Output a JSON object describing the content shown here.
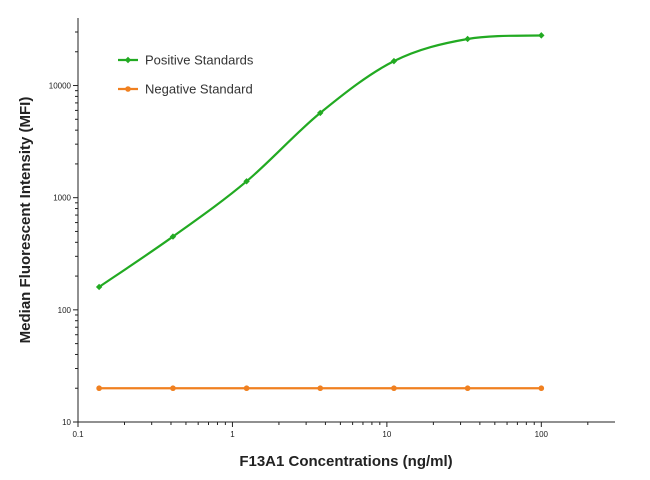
{
  "chart_data": {
    "type": "line",
    "title": "",
    "xlabel": "F13A1 Concentrations (ng/ml)",
    "ylabel": "Median  Fluorescent Intensity  (MFI)",
    "xscale": "log",
    "yscale": "log",
    "xlim": [
      0.1,
      300
    ],
    "ylim": [
      10,
      40000
    ],
    "x_ticks": [
      {
        "value": 0.1,
        "label": "0.1"
      },
      {
        "value": 1,
        "label": "1"
      },
      {
        "value": 10,
        "label": "10"
      },
      {
        "value": 100,
        "label": "100"
      }
    ],
    "y_ticks": [
      {
        "value": 10,
        "label": "10"
      },
      {
        "value": 100,
        "label": "100"
      },
      {
        "value": 1000,
        "label": "1000"
      },
      {
        "value": 10000,
        "label": "10000"
      }
    ],
    "grid": false,
    "legend_position": "top-left",
    "series": [
      {
        "name": "Positive Standards",
        "color": "#22aa22",
        "marker": "diamond",
        "smooth": true,
        "x": [
          0.137,
          0.412,
          1.235,
          3.704,
          11.11,
          33.33,
          100
        ],
        "y": [
          160,
          450,
          1400,
          5700,
          16500,
          26000,
          28000
        ]
      },
      {
        "name": "Negative Standard",
        "color": "#f08020",
        "marker": "circle",
        "smooth": false,
        "x": [
          0.137,
          0.412,
          1.235,
          3.704,
          11.11,
          33.33,
          100
        ],
        "y": [
          20,
          20,
          20,
          20,
          20,
          20,
          20
        ]
      }
    ]
  }
}
